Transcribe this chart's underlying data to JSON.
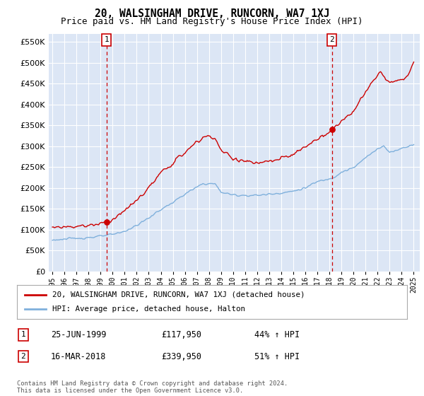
{
  "title": "20, WALSINGHAM DRIVE, RUNCORN, WA7 1XJ",
  "subtitle": "Price paid vs. HM Land Registry's House Price Index (HPI)",
  "fig_bg_color": "#ffffff",
  "plot_bg_color": "#dce6f5",
  "red_color": "#cc0000",
  "blue_color": "#7fb0dc",
  "grid_color": "#ffffff",
  "ylim": [
    0,
    570000
  ],
  "yticks": [
    0,
    50000,
    100000,
    150000,
    200000,
    250000,
    300000,
    350000,
    400000,
    450000,
    500000,
    550000
  ],
  "ytick_labels": [
    "£0",
    "£50K",
    "£100K",
    "£150K",
    "£200K",
    "£250K",
    "£300K",
    "£350K",
    "£400K",
    "£450K",
    "£500K",
    "£550K"
  ],
  "sale1_year": 1999.49,
  "sale1_value": 117950,
  "sale2_year": 2018.21,
  "sale2_value": 339950,
  "legend_line1": "20, WALSINGHAM DRIVE, RUNCORN, WA7 1XJ (detached house)",
  "legend_line2": "HPI: Average price, detached house, Halton",
  "row1_num": "1",
  "row1_date": "25-JUN-1999",
  "row1_price": "£117,950",
  "row1_hpi": "44% ↑ HPI",
  "row2_num": "2",
  "row2_date": "16-MAR-2018",
  "row2_price": "£339,950",
  "row2_hpi": "51% ↑ HPI",
  "footer": "Contains HM Land Registry data © Crown copyright and database right 2024.\nThis data is licensed under the Open Government Licence v3.0.",
  "xtick_years": [
    "1995",
    "1996",
    "1997",
    "1998",
    "1999",
    "2000",
    "2001",
    "2002",
    "2003",
    "2004",
    "2005",
    "2006",
    "2007",
    "2008",
    "2009",
    "2010",
    "2011",
    "2012",
    "2013",
    "2014",
    "2015",
    "2016",
    "2017",
    "2018",
    "2019",
    "2020",
    "2021",
    "2022",
    "2023",
    "2024",
    "2025"
  ]
}
